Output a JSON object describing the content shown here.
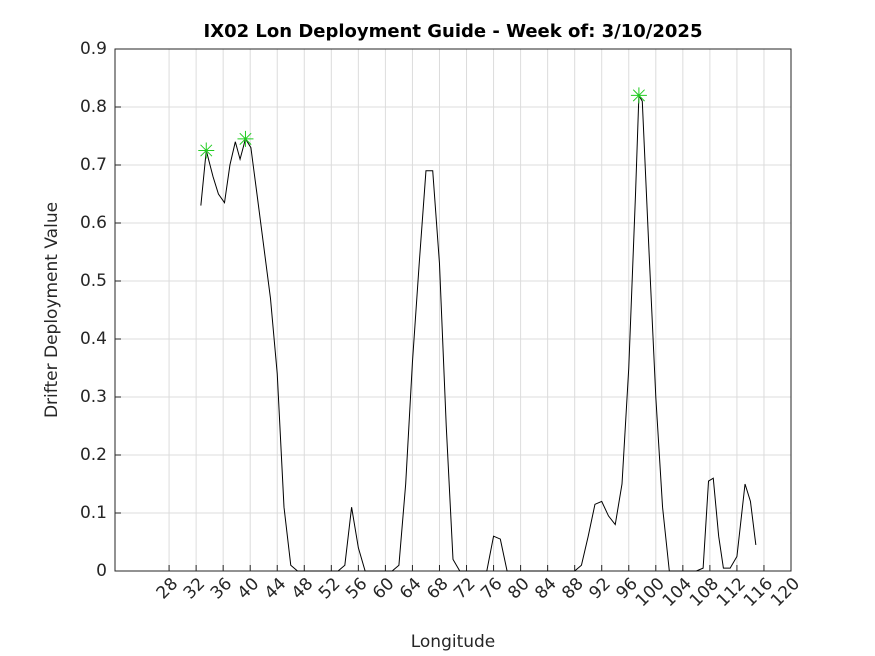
{
  "chart_data": {
    "type": "line",
    "title": "IX02 Lon Deployment Guide - Week of: 3/10/2025",
    "x_label": "Longitude",
    "y_label": "Drifter Deployment Value",
    "xlim": [
      20,
      120
    ],
    "ylim": [
      0,
      0.9
    ],
    "xticks": [
      28,
      32,
      36,
      40,
      44,
      48,
      52,
      56,
      60,
      64,
      68,
      72,
      76,
      80,
      84,
      88,
      92,
      96,
      100,
      104,
      108,
      112,
      116,
      120
    ],
    "yticks": [
      0,
      0.1,
      0.2,
      0.3,
      0.4,
      0.5,
      0.6,
      0.7,
      0.8,
      0.9
    ],
    "grid": true,
    "series": [
      {
        "color": "#000000",
        "marker": "none",
        "x": [
          32.7,
          33.5,
          34.5,
          35.3,
          36.2,
          37.0,
          37.8,
          38.5,
          39.3,
          40.1,
          41,
          42,
          43,
          44,
          45,
          46,
          47,
          48,
          49,
          50,
          51,
          52,
          53,
          54,
          55,
          56,
          57,
          58,
          59,
          60,
          61,
          62,
          63,
          64,
          65,
          66,
          67,
          68,
          69,
          70,
          71,
          72,
          73,
          74,
          75,
          76,
          77,
          78,
          79,
          80,
          81,
          82,
          83,
          84,
          85,
          86,
          87,
          88,
          89,
          90,
          91,
          92,
          93,
          94,
          95,
          96,
          97,
          97.5,
          98,
          99,
          100,
          101,
          102,
          103,
          104,
          105,
          106,
          107,
          107.8,
          108.5,
          109.3,
          110,
          111,
          112,
          113.2,
          114,
          114.8
        ],
        "values": [
          0.63,
          0.725,
          0.68,
          0.65,
          0.635,
          0.7,
          0.74,
          0.71,
          0.745,
          0.73,
          0.65,
          0.56,
          0.47,
          0.34,
          0.11,
          0.01,
          0,
          0,
          0,
          0,
          0,
          0,
          0,
          0.01,
          0.11,
          0.04,
          0,
          0,
          0,
          0,
          0,
          0.01,
          0.15,
          0.36,
          0.53,
          0.69,
          0.69,
          0.53,
          0.25,
          0.02,
          0,
          0,
          0,
          0,
          0,
          0.06,
          0.055,
          0,
          0,
          0,
          0,
          0,
          0,
          0,
          0,
          0,
          0,
          0,
          0.01,
          0.06,
          0.115,
          0.12,
          0.095,
          0.08,
          0.15,
          0.35,
          0.65,
          0.82,
          0.81,
          0.55,
          0.3,
          0.11,
          0,
          0,
          0,
          0,
          0,
          0.005,
          0.155,
          0.16,
          0.06,
          0.005,
          0.005,
          0.025,
          0.15,
          0.12,
          0.045
        ]
      },
      {
        "color": "#22cc22",
        "marker": "asterisk",
        "x": [
          33.5,
          39.3,
          97.5
        ],
        "values": [
          0.725,
          0.745,
          0.82
        ]
      }
    ]
  }
}
